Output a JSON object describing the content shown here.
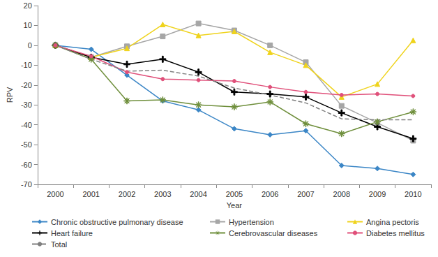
{
  "chart_data": {
    "type": "line",
    "x_label": "Year",
    "y_label": "RPV",
    "categories": [
      "2000",
      "2001",
      "2002",
      "2003",
      "2004",
      "2005",
      "2006",
      "2007",
      "2008",
      "2009",
      "2010"
    ],
    "ylim": [
      -70,
      20
    ],
    "yticks": [
      -70,
      -60,
      -50,
      -40,
      -30,
      -20,
      -10,
      0,
      10,
      20
    ],
    "grid": false,
    "legend": "bottom",
    "series": [
      {
        "name": "Chronic obstructive pulmonary disease",
        "color": "#3b86c6",
        "marker": "diamond",
        "line_style": "solid",
        "values": [
          0,
          -2,
          -15,
          -28,
          -32.5,
          -42,
          -45,
          -43,
          -60.5,
          -62,
          -65
        ]
      },
      {
        "name": "Hypertension",
        "color": "#a6a6a6",
        "marker": "square",
        "line_style": "solid",
        "values": [
          0,
          -6,
          -0.5,
          4.5,
          11,
          7.5,
          0,
          -8.5,
          -30.5,
          -39,
          -48
        ]
      },
      {
        "name": "Angina pectoris",
        "color": "#efd31c",
        "marker": "triangle",
        "line_style": "solid",
        "values": [
          0,
          -6,
          -1.5,
          10.5,
          5,
          7,
          -3.5,
          -10,
          -26,
          -19.5,
          2.5
        ]
      },
      {
        "name": "Heart failure",
        "color": "#000000",
        "marker": "plus",
        "line_style": "solid",
        "values": [
          0,
          -6,
          -9.5,
          -7,
          -13.5,
          -23.5,
          -24.5,
          -26,
          -34,
          -41,
          -47
        ]
      },
      {
        "name": "Cerebrovascular diseases",
        "color": "#6f8f3c",
        "marker": "star",
        "line_style": "solid",
        "values": [
          0,
          -7,
          -28,
          -27.5,
          -30,
          -31,
          -28.5,
          -39.5,
          -44.5,
          -38.5,
          -33.5
        ]
      },
      {
        "name": "Diabetes mellitus",
        "color": "#e0507a",
        "marker": "circle",
        "line_style": "solid",
        "values": [
          0,
          -5.5,
          -13.5,
          -17,
          -17.5,
          -18,
          -21,
          -23.5,
          -25,
          -24.5,
          -25.5
        ]
      },
      {
        "name": "Total",
        "color": "#808080",
        "marker": "none",
        "line_style": "dashed",
        "values": [
          0,
          -7,
          -13,
          -12.5,
          -15.5,
          -21.5,
          -25,
          -29,
          -37,
          -37.5,
          -37.5
        ]
      }
    ]
  }
}
